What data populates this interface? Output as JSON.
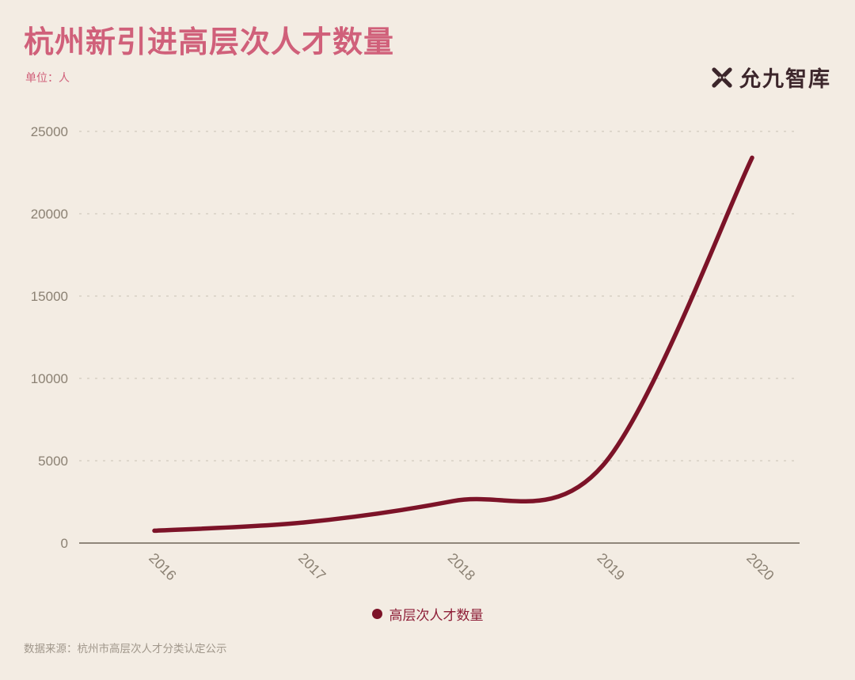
{
  "header": {
    "title": "杭州新引进高层次人才数量",
    "unit_label": "单位：人",
    "logo_text": "允九智库"
  },
  "chart_data": {
    "type": "line",
    "x": [
      "2016",
      "2017",
      "2018",
      "2019",
      "2020"
    ],
    "series": [
      {
        "name": "高层次人才数量",
        "values": [
          750,
          1250,
          2550,
          4700,
          23400
        ]
      }
    ],
    "title": "杭州新引进高层次人才数量",
    "xlabel": "",
    "ylabel": "单位：人",
    "ylim": [
      0,
      25000
    ],
    "yticks": [
      0,
      5000,
      10000,
      15000,
      20000,
      25000
    ],
    "grid": "horizontal-dashed",
    "smooth": true,
    "legend_position": "bottom-center"
  },
  "legend": {
    "label": "高层次人才数量"
  },
  "footer": {
    "source": "数据来源：杭州市高层次人才分类认定公示"
  },
  "icons": {
    "logo_icon": "woven-knot-icon"
  },
  "colors": {
    "background": "#f3ece3",
    "title": "#d0607a",
    "line": "#7c1328",
    "axis_text": "#8b8173",
    "grid": "#d7d0c4",
    "axis_line": "#6e6458",
    "legend_text": "#8e1f38",
    "footer_text": "#a0978b",
    "logo": "#3c262b"
  }
}
